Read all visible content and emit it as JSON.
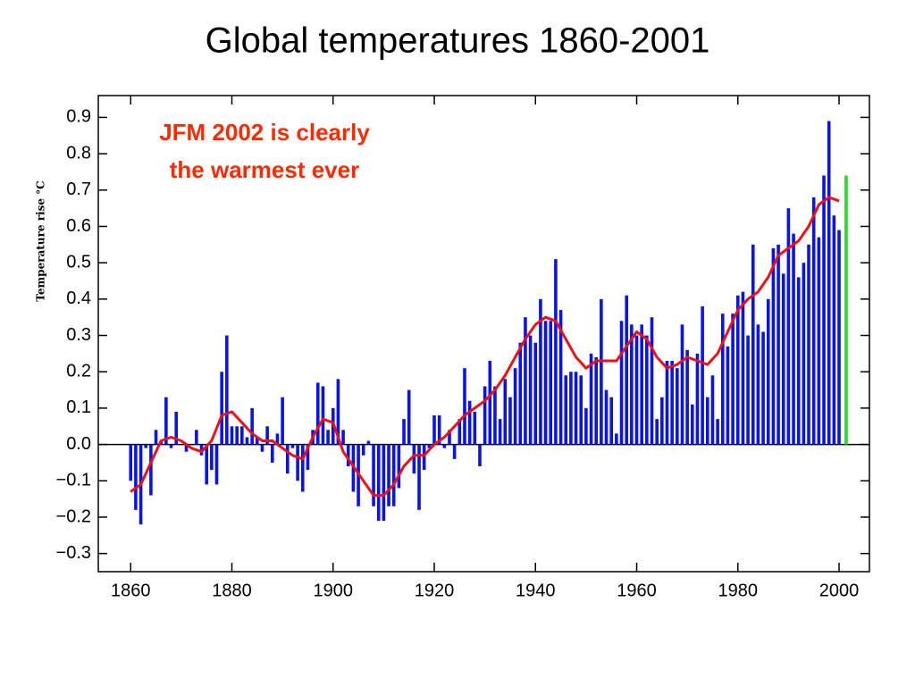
{
  "chart_data": {
    "type": "bar",
    "title": "Global temperatures 1860-2001",
    "ylabel": "Temperature rise °C",
    "annotation": [
      "JFM 2002 is clearly",
      "the warmest ever"
    ],
    "annotation_color": "#ff2a00",
    "xlim": [
      1853.6,
      2006
    ],
    "xticks": [
      1860,
      1880,
      1900,
      1920,
      1940,
      1960,
      1980,
      2000
    ],
    "ylim": [
      -0.35,
      0.96
    ],
    "yticks": [
      0.9,
      0.8,
      0.7,
      0.6,
      0.5,
      0.4,
      0.3,
      0.2,
      0.1,
      {
        "value": 0,
        "label": "0.0"
      },
      {
        "value": -0.1,
        "label": "−0.1"
      },
      {
        "value": -0.2,
        "label": "−0.2"
      },
      {
        "value": -0.3,
        "label": "−0.3"
      }
    ],
    "grid": false,
    "series": [
      {
        "type": "bar",
        "color": "#0a14e6",
        "x": [
          1860,
          1861,
          1862,
          1863,
          1864,
          1865,
          1866,
          1867,
          1868,
          1869,
          1870,
          1871,
          1872,
          1873,
          1874,
          1875,
          1876,
          1877,
          1878,
          1879,
          1880,
          1881,
          1882,
          1883,
          1884,
          1885,
          1886,
          1887,
          1888,
          1889,
          1890,
          1891,
          1892,
          1893,
          1894,
          1895,
          1896,
          1897,
          1898,
          1899,
          1900,
          1901,
          1902,
          1903,
          1904,
          1905,
          1906,
          1907,
          1908,
          1909,
          1910,
          1911,
          1912,
          1913,
          1914,
          1915,
          1916,
          1917,
          1918,
          1919,
          1920,
          1921,
          1922,
          1923,
          1924,
          1925,
          1926,
          1927,
          1928,
          1929,
          1930,
          1931,
          1932,
          1933,
          1934,
          1935,
          1936,
          1937,
          1938,
          1939,
          1940,
          1941,
          1942,
          1943,
          1944,
          1945,
          1946,
          1947,
          1948,
          1949,
          1950,
          1951,
          1952,
          1953,
          1954,
          1955,
          1956,
          1957,
          1958,
          1959,
          1960,
          1961,
          1962,
          1963,
          1964,
          1965,
          1966,
          1967,
          1968,
          1969,
          1970,
          1971,
          1972,
          1973,
          1974,
          1975,
          1976,
          1977,
          1978,
          1979,
          1980,
          1981,
          1982,
          1983,
          1984,
          1985,
          1986,
          1987,
          1988,
          1989,
          1990,
          1991,
          1992,
          1993,
          1994,
          1995,
          1996,
          1997,
          1998,
          1999,
          2000
        ],
        "values": [
          -0.1,
          -0.18,
          -0.22,
          -0.01,
          -0.14,
          0.04,
          0.01,
          0.13,
          -0.01,
          0.09,
          0.0,
          -0.02,
          0.0,
          0.04,
          -0.03,
          -0.11,
          -0.07,
          -0.11,
          0.2,
          0.3,
          0.05,
          0.05,
          0.05,
          0.02,
          0.1,
          0.02,
          -0.02,
          0.05,
          -0.05,
          0.03,
          0.13,
          -0.08,
          -0.01,
          -0.1,
          -0.13,
          -0.07,
          0.04,
          0.17,
          0.16,
          0.04,
          0.1,
          0.18,
          0.04,
          -0.06,
          -0.13,
          -0.17,
          -0.03,
          0.01,
          -0.17,
          -0.21,
          -0.21,
          -0.17,
          -0.17,
          -0.12,
          0.07,
          0.15,
          -0.08,
          -0.18,
          -0.07,
          -0.01,
          0.08,
          0.08,
          -0.01,
          0.04,
          -0.04,
          0.07,
          0.21,
          0.12,
          0.09,
          -0.06,
          0.16,
          0.23,
          0.16,
          0.07,
          0.18,
          0.13,
          0.21,
          0.28,
          0.35,
          0.3,
          0.28,
          0.4,
          0.34,
          0.34,
          0.51,
          0.37,
          0.19,
          0.2,
          0.2,
          0.19,
          0.1,
          0.25,
          0.24,
          0.4,
          0.15,
          0.13,
          0.03,
          0.34,
          0.41,
          0.33,
          0.3,
          0.33,
          0.3,
          0.35,
          0.07,
          0.13,
          0.23,
          0.23,
          0.21,
          0.33,
          0.26,
          0.11,
          0.25,
          0.38,
          0.13,
          0.19,
          0.07,
          0.36,
          0.27,
          0.36,
          0.41,
          0.42,
          0.3,
          0.55,
          0.33,
          0.31,
          0.4,
          0.54,
          0.55,
          0.47,
          0.65,
          0.58,
          0.46,
          0.5,
          0.55,
          0.68,
          0.57,
          0.74,
          0.89,
          0.63,
          0.59
        ]
      },
      {
        "type": "line",
        "color": "#ee1111",
        "x": [
          1860,
          1862,
          1864,
          1866,
          1868,
          1870,
          1872,
          1874,
          1876,
          1878,
          1880,
          1882,
          1884,
          1886,
          1888,
          1890,
          1892,
          1894,
          1896,
          1898,
          1900,
          1902,
          1904,
          1906,
          1908,
          1910,
          1912,
          1914,
          1916,
          1918,
          1920,
          1922,
          1924,
          1926,
          1928,
          1930,
          1932,
          1934,
          1936,
          1938,
          1940,
          1942,
          1944,
          1946,
          1948,
          1950,
          1952,
          1954,
          1956,
          1958,
          1960,
          1962,
          1964,
          1966,
          1968,
          1970,
          1972,
          1974,
          1976,
          1978,
          1980,
          1982,
          1984,
          1986,
          1988,
          1990,
          1992,
          1994,
          1996,
          1998,
          2000
        ],
        "values": [
          -0.13,
          -0.11,
          -0.05,
          0.01,
          0.02,
          0.01,
          -0.01,
          -0.02,
          0.01,
          0.08,
          0.09,
          0.06,
          0.03,
          0.01,
          0.01,
          -0.01,
          -0.03,
          -0.04,
          0.02,
          0.07,
          0.06,
          -0.02,
          -0.06,
          -0.1,
          -0.14,
          -0.14,
          -0.11,
          -0.06,
          -0.03,
          -0.03,
          0.0,
          0.02,
          0.05,
          0.08,
          0.1,
          0.12,
          0.15,
          0.19,
          0.24,
          0.29,
          0.33,
          0.35,
          0.34,
          0.29,
          0.24,
          0.21,
          0.23,
          0.23,
          0.23,
          0.27,
          0.31,
          0.29,
          0.24,
          0.21,
          0.22,
          0.24,
          0.23,
          0.22,
          0.25,
          0.31,
          0.37,
          0.4,
          0.42,
          0.46,
          0.52,
          0.54,
          0.56,
          0.6,
          0.66,
          0.68,
          0.67
        ]
      },
      {
        "type": "bar",
        "color": "#22dd22",
        "x": [
          2001.4
        ],
        "values": [
          0.74
        ]
      }
    ]
  }
}
